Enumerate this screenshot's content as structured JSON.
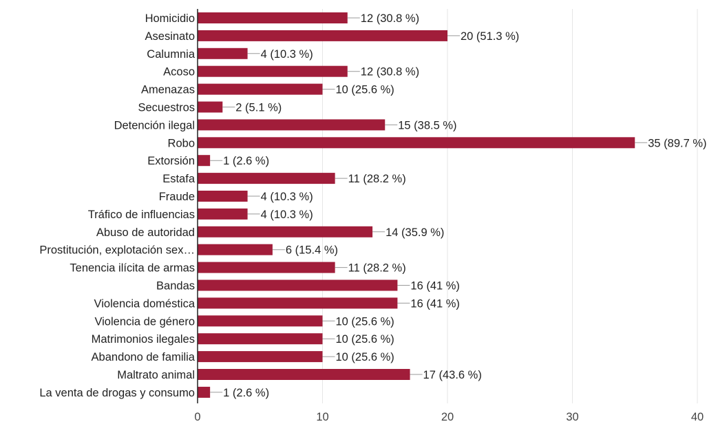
{
  "chart_data": {
    "type": "bar",
    "orientation": "horizontal",
    "categories": [
      "Homicidio",
      "Asesinato",
      "Calumnia",
      "Acoso",
      "Amenazas",
      "Secuestros",
      "Detención ilegal",
      "Robo",
      "Extorsión",
      "Estafa",
      "Fraude",
      "Tráfico de influencias",
      "Abuso de autoridad",
      "Prostitución, explotación sex…",
      "Tenencia ilícita de armas",
      "Bandas",
      "Violencia doméstica",
      "Violencia de género",
      "Matrimonios ilegales",
      "Abandono de familia",
      "Maltrato animal",
      "La venta de drogas y consumo"
    ],
    "values": [
      12,
      20,
      4,
      12,
      10,
      2,
      15,
      35,
      1,
      11,
      4,
      4,
      14,
      6,
      11,
      16,
      16,
      10,
      10,
      10,
      17,
      1
    ],
    "data_labels": [
      "12 (30.8 %)",
      "20 (51.3 %)",
      "4 (10.3 %)",
      "12 (30.8 %)",
      "10 (25.6 %)",
      "2 (5.1 %)",
      "15 (38.5 %)",
      "35 (89.7 %)",
      "1 (2.6 %)",
      "11 (28.2 %)",
      "4 (10.3 %)",
      "4 (10.3 %)",
      "14 (35.9 %)",
      "6 (15.4 %)",
      "11 (28.2 %)",
      "16 (41 %)",
      "16 (41 %)",
      "10 (25.6 %)",
      "10 (25.6 %)",
      "10 (25.6 %)",
      "17 (43.6 %)",
      "1 (2.6 %)"
    ],
    "xlim": [
      0,
      40
    ],
    "xticks": [
      0,
      10,
      20,
      30,
      40
    ],
    "xtick_labels": [
      "0",
      "10",
      "20",
      "30",
      "40"
    ],
    "grid": true,
    "legend": "none",
    "title": "",
    "xlabel": "",
    "ylabel": "",
    "colors": {
      "bar": "#a11d3a",
      "grid": "#e6e6e6",
      "axis": "#222222",
      "leader": "#9a9a9a"
    }
  }
}
